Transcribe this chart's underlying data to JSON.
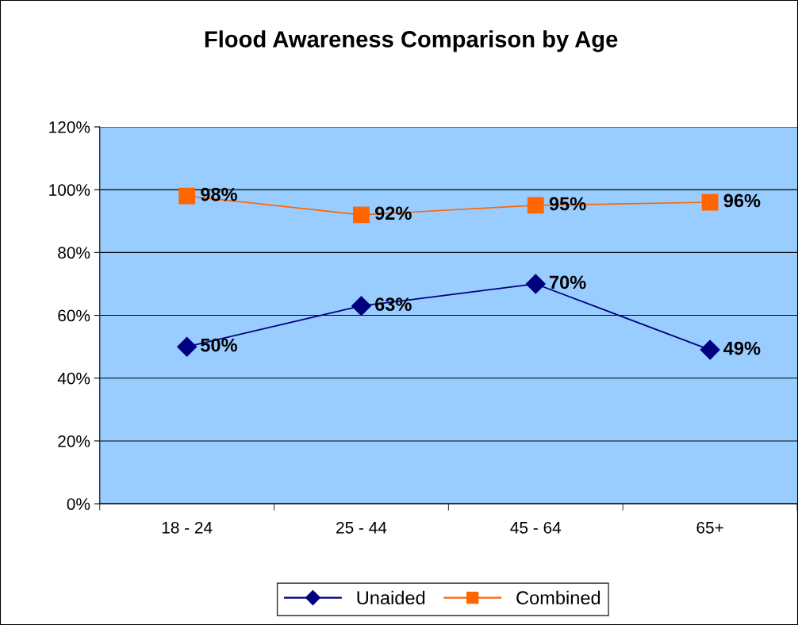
{
  "chart_data": {
    "type": "line",
    "title": "Flood Awareness Comparison by Age",
    "categories": [
      "18 - 24",
      "25 - 44",
      "45 - 64",
      "65+"
    ],
    "series": [
      {
        "name": "Unaided",
        "color": "#000080",
        "marker": "diamond",
        "values": [
          50,
          63,
          70,
          49
        ],
        "value_labels": [
          "50%",
          "63%",
          "70%",
          "49%"
        ]
      },
      {
        "name": "Combined",
        "color": "#ff6600",
        "marker": "square",
        "values": [
          98,
          92,
          95,
          96
        ],
        "value_labels": [
          "98%",
          "92%",
          "95%",
          "96%"
        ]
      }
    ],
    "ylim": [
      0,
      120
    ],
    "yticks": [
      {
        "value": 0,
        "label": "0%"
      },
      {
        "value": 20,
        "label": "20%"
      },
      {
        "value": 40,
        "label": "40%"
      },
      {
        "value": 60,
        "label": "60%"
      },
      {
        "value": 80,
        "label": "80%"
      },
      {
        "value": 100,
        "label": "100%"
      },
      {
        "value": 120,
        "label": "120%"
      }
    ],
    "grid": "y",
    "legend": "bottom",
    "line_style": "solid"
  }
}
